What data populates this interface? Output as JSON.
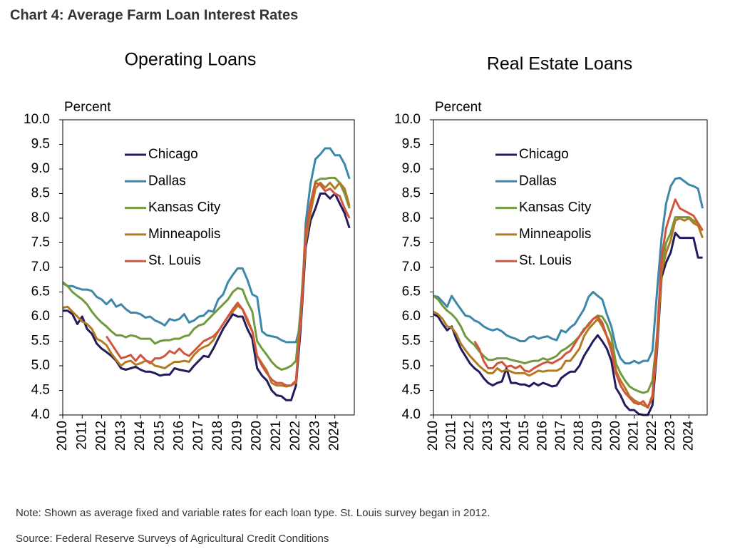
{
  "title": "Chart 4: Average Farm Loan Interest Rates",
  "note": "Note: Shown as average fixed and variable rates for each loan type. St. Louis survey began in 2012.",
  "source": "Source: Federal Reserve Surveys of Agricultural Credit Conditions",
  "chart_data": [
    {
      "type": "line",
      "title": "Operating Loans",
      "y_label": "Percent",
      "legend": "upper left",
      "grid": false,
      "x": [
        2010,
        2010.25,
        2010.5,
        2010.75,
        2011,
        2011.25,
        2011.5,
        2011.75,
        2012,
        2012.25,
        2012.5,
        2012.75,
        2013,
        2013.25,
        2013.5,
        2013.75,
        2014,
        2014.25,
        2014.5,
        2014.75,
        2015,
        2015.25,
        2015.5,
        2015.75,
        2016,
        2016.25,
        2016.5,
        2016.75,
        2017,
        2017.25,
        2017.5,
        2017.75,
        2018,
        2018.25,
        2018.5,
        2018.75,
        2019,
        2019.25,
        2019.5,
        2019.75,
        2020,
        2020.25,
        2020.5,
        2020.75,
        2021,
        2021.25,
        2021.5,
        2021.75,
        2022,
        2022.25,
        2022.5,
        2022.75,
        2023,
        2023.25,
        2023.5,
        2023.75,
        2024,
        2024.25,
        2024.5,
        2024.75
      ],
      "xlim": [
        2010,
        2025
      ],
      "xticks": [
        2010,
        2011,
        2012,
        2013,
        2014,
        2015,
        2016,
        2017,
        2018,
        2019,
        2020,
        2021,
        2022,
        2023,
        2024
      ],
      "ylim": [
        4,
        10
      ],
      "yticks": [
        {
          "value": 4,
          "label": "4.0"
        },
        {
          "value": 4.5,
          "label": "4.5"
        },
        {
          "value": 5,
          "label": "5.0"
        },
        {
          "value": 5.5,
          "label": "5.5"
        },
        {
          "value": 6,
          "label": "6.0"
        },
        {
          "value": 6.5,
          "label": "6.5"
        },
        {
          "value": 7,
          "label": "7.0"
        },
        {
          "value": 7.5,
          "label": "7.5"
        },
        {
          "value": 8,
          "label": "8.0"
        },
        {
          "value": 8.5,
          "label": "8.5"
        },
        {
          "value": 9,
          "label": "9.0"
        },
        {
          "value": 9.5,
          "label": "9.5"
        },
        {
          "value": 10,
          "label": "10.0"
        }
      ],
      "series": [
        {
          "name": "Chicago",
          "color": "#221c5c",
          "values": [
            6.12,
            6.12,
            6.05,
            5.85,
            6.0,
            5.75,
            5.65,
            5.45,
            5.35,
            5.28,
            5.2,
            5.1,
            4.95,
            4.92,
            4.95,
            4.98,
            4.92,
            4.88,
            4.88,
            4.85,
            4.8,
            4.82,
            4.82,
            4.95,
            4.92,
            4.9,
            4.88,
            5.0,
            5.1,
            5.2,
            5.18,
            5.35,
            5.55,
            5.75,
            5.9,
            6.05,
            6.0,
            6.0,
            5.75,
            5.55,
            4.95,
            4.8,
            4.7,
            4.5,
            4.4,
            4.38,
            4.3,
            4.3,
            4.6,
            5.8,
            7.4,
            7.95,
            8.2,
            8.5,
            8.5,
            8.4,
            8.5,
            8.3,
            8.1,
            7.8
          ]
        },
        {
          "name": "Dallas",
          "color": "#3d87a9",
          "values": [
            6.68,
            6.62,
            6.62,
            6.58,
            6.55,
            6.55,
            6.52,
            6.4,
            6.35,
            6.25,
            6.35,
            6.2,
            6.25,
            6.15,
            6.08,
            6.08,
            6.05,
            5.98,
            6.0,
            5.92,
            5.88,
            5.82,
            5.95,
            5.92,
            5.95,
            6.05,
            5.88,
            5.92,
            6.0,
            6.02,
            6.12,
            6.1,
            6.35,
            6.45,
            6.7,
            6.85,
            6.98,
            6.98,
            6.75,
            6.45,
            6.4,
            5.7,
            5.62,
            5.6,
            5.58,
            5.52,
            5.48,
            5.48,
            5.48,
            5.85,
            7.9,
            8.7,
            9.2,
            9.3,
            9.42,
            9.42,
            9.28,
            9.28,
            9.1,
            8.8
          ]
        },
        {
          "name": "Kansas City",
          "color": "#6f9a3e",
          "values": [
            6.7,
            6.62,
            6.5,
            6.42,
            6.35,
            6.25,
            6.1,
            5.98,
            5.88,
            5.8,
            5.7,
            5.62,
            5.62,
            5.58,
            5.62,
            5.6,
            5.55,
            5.55,
            5.55,
            5.45,
            5.5,
            5.52,
            5.52,
            5.55,
            5.55,
            5.6,
            5.62,
            5.75,
            5.82,
            5.85,
            5.95,
            6.05,
            6.15,
            6.25,
            6.35,
            6.5,
            6.58,
            6.55,
            6.3,
            6.1,
            5.5,
            5.35,
            5.22,
            5.08,
            4.98,
            4.92,
            4.95,
            5.0,
            5.1,
            6.2,
            7.6,
            8.3,
            8.75,
            8.8,
            8.8,
            8.82,
            8.82,
            8.72,
            8.5,
            8.2
          ]
        },
        {
          "name": "Minneapolis",
          "color": "#b27b22",
          "values": [
            6.18,
            6.2,
            6.1,
            6.0,
            5.9,
            5.85,
            5.75,
            5.55,
            5.5,
            5.42,
            5.25,
            5.12,
            5.0,
            5.08,
            5.1,
            5.02,
            5.05,
            5.1,
            5.08,
            5.0,
            4.98,
            4.95,
            5.02,
            5.08,
            5.08,
            5.1,
            5.08,
            5.22,
            5.32,
            5.38,
            5.42,
            5.52,
            5.7,
            5.85,
            6.0,
            6.1,
            6.22,
            6.15,
            5.95,
            5.7,
            5.2,
            5.05,
            4.9,
            4.65,
            4.6,
            4.6,
            4.58,
            4.6,
            4.65,
            6.0,
            7.5,
            8.1,
            8.6,
            8.72,
            8.62,
            8.72,
            8.6,
            8.72,
            8.6,
            8.25
          ]
        },
        {
          "name": "St. Louis",
          "color": "#d1563b",
          "values": [
            null,
            null,
            null,
            null,
            null,
            null,
            null,
            null,
            null,
            5.6,
            5.45,
            5.3,
            5.15,
            5.18,
            5.22,
            5.1,
            5.22,
            5.12,
            5.05,
            5.15,
            5.15,
            5.2,
            5.3,
            5.25,
            5.35,
            5.25,
            5.2,
            5.3,
            5.4,
            5.5,
            5.55,
            5.6,
            5.7,
            5.85,
            6.0,
            6.15,
            6.28,
            6.15,
            5.9,
            5.7,
            5.2,
            5.0,
            4.85,
            4.72,
            4.65,
            4.65,
            4.6,
            4.6,
            4.7,
            6.0,
            7.7,
            8.3,
            8.72,
            8.68,
            8.55,
            8.6,
            8.5,
            8.45,
            8.2,
            8.0
          ]
        }
      ]
    },
    {
      "type": "line",
      "title": "Real Estate Loans",
      "y_label": "Percent",
      "legend": "upper left",
      "grid": false,
      "x": [
        2010,
        2010.25,
        2010.5,
        2010.75,
        2011,
        2011.25,
        2011.5,
        2011.75,
        2012,
        2012.25,
        2012.5,
        2012.75,
        2013,
        2013.25,
        2013.5,
        2013.75,
        2014,
        2014.25,
        2014.5,
        2014.75,
        2015,
        2015.25,
        2015.5,
        2015.75,
        2016,
        2016.25,
        2016.5,
        2016.75,
        2017,
        2017.25,
        2017.5,
        2017.75,
        2018,
        2018.25,
        2018.5,
        2018.75,
        2019,
        2019.25,
        2019.5,
        2019.75,
        2020,
        2020.25,
        2020.5,
        2020.75,
        2021,
        2021.25,
        2021.5,
        2021.75,
        2022,
        2022.25,
        2022.5,
        2022.75,
        2023,
        2023.25,
        2023.5,
        2023.75,
        2024,
        2024.25,
        2024.5,
        2024.75
      ],
      "xlim": [
        2010,
        2025
      ],
      "xticks": [
        2010,
        2011,
        2012,
        2013,
        2014,
        2015,
        2016,
        2017,
        2018,
        2019,
        2020,
        2021,
        2022,
        2023,
        2024
      ],
      "ylim": [
        4,
        10
      ],
      "yticks": [
        {
          "value": 4,
          "label": "4.0"
        },
        {
          "value": 4.5,
          "label": "4.5"
        },
        {
          "value": 5,
          "label": "5.0"
        },
        {
          "value": 5.5,
          "label": "5.5"
        },
        {
          "value": 6,
          "label": "6.0"
        },
        {
          "value": 6.5,
          "label": "6.5"
        },
        {
          "value": 7,
          "label": "7.0"
        },
        {
          "value": 7.5,
          "label": "7.5"
        },
        {
          "value": 8,
          "label": "8.0"
        },
        {
          "value": 8.5,
          "label": "8.5"
        },
        {
          "value": 9,
          "label": "9.0"
        },
        {
          "value": 9.5,
          "label": "9.5"
        },
        {
          "value": 10,
          "label": "10.0"
        }
      ],
      "series": [
        {
          "name": "Chicago",
          "color": "#221c5c",
          "values": [
            6.05,
            6.0,
            5.85,
            5.72,
            5.8,
            5.55,
            5.35,
            5.2,
            5.05,
            4.95,
            4.88,
            4.75,
            4.65,
            4.6,
            4.65,
            4.68,
            4.95,
            4.65,
            4.65,
            4.62,
            4.62,
            4.58,
            4.65,
            4.6,
            4.65,
            4.62,
            4.58,
            4.6,
            4.75,
            4.82,
            4.88,
            4.88,
            5.0,
            5.2,
            5.35,
            5.5,
            5.62,
            5.5,
            5.35,
            5.1,
            4.55,
            4.4,
            4.2,
            4.1,
            4.1,
            4.02,
            4.0,
            4.0,
            4.2,
            5.3,
            6.8,
            7.1,
            7.3,
            7.7,
            7.6,
            7.6,
            7.6,
            7.6,
            7.2,
            7.2
          ]
        },
        {
          "name": "Dallas",
          "color": "#3d87a9",
          "values": [
            6.42,
            6.4,
            6.3,
            6.2,
            6.42,
            6.28,
            6.15,
            6.02,
            6.0,
            5.92,
            5.88,
            5.8,
            5.75,
            5.72,
            5.75,
            5.7,
            5.62,
            5.58,
            5.55,
            5.5,
            5.5,
            5.58,
            5.6,
            5.55,
            5.58,
            5.6,
            5.55,
            5.52,
            5.72,
            5.68,
            5.78,
            5.85,
            6.0,
            6.15,
            6.4,
            6.5,
            6.42,
            6.35,
            6.05,
            5.8,
            5.38,
            5.15,
            5.05,
            5.05,
            5.1,
            5.05,
            5.1,
            5.1,
            5.3,
            6.5,
            7.6,
            8.3,
            8.65,
            8.8,
            8.82,
            8.75,
            8.68,
            8.65,
            8.6,
            8.2
          ]
        },
        {
          "name": "Kansas City",
          "color": "#6f9a3e",
          "values": [
            6.42,
            6.35,
            6.22,
            6.12,
            6.05,
            5.95,
            5.8,
            5.6,
            5.5,
            5.42,
            5.3,
            5.2,
            5.12,
            5.12,
            5.15,
            5.15,
            5.15,
            5.12,
            5.1,
            5.08,
            5.05,
            5.08,
            5.1,
            5.1,
            5.15,
            5.12,
            5.15,
            5.2,
            5.3,
            5.35,
            5.42,
            5.5,
            5.6,
            5.75,
            5.82,
            5.95,
            6.02,
            6.0,
            5.85,
            5.6,
            5.05,
            4.85,
            4.7,
            4.58,
            4.52,
            4.48,
            4.45,
            4.48,
            4.7,
            5.6,
            7.0,
            7.5,
            7.7,
            8.02,
            8.02,
            8.02,
            8.02,
            7.95,
            7.9,
            7.75
          ]
        },
        {
          "name": "Minneapolis",
          "color": "#b27b22",
          "values": [
            6.1,
            6.05,
            5.95,
            5.8,
            5.78,
            5.65,
            5.45,
            5.32,
            5.2,
            5.1,
            5.0,
            4.92,
            4.85,
            4.85,
            4.95,
            4.88,
            4.92,
            4.88,
            4.85,
            4.85,
            4.85,
            4.8,
            4.85,
            4.9,
            4.88,
            4.9,
            4.9,
            4.9,
            4.95,
            5.1,
            5.1,
            5.22,
            5.35,
            5.6,
            5.75,
            5.85,
            5.95,
            5.8,
            5.6,
            5.42,
            4.9,
            4.7,
            4.55,
            4.38,
            4.3,
            4.25,
            4.2,
            4.15,
            4.35,
            5.4,
            6.9,
            7.3,
            7.55,
            7.95,
            8.0,
            7.95,
            8.0,
            7.9,
            7.85,
            7.6
          ]
        },
        {
          "name": "St. Louis",
          "color": "#d1563b",
          "values": [
            null,
            null,
            null,
            null,
            null,
            null,
            null,
            null,
            null,
            5.5,
            5.35,
            5.1,
            4.95,
            4.95,
            5.05,
            5.08,
            4.98,
            5.0,
            4.95,
            5.0,
            4.9,
            4.88,
            4.95,
            5.0,
            5.05,
            5.08,
            5.05,
            5.1,
            5.15,
            5.25,
            5.3,
            5.45,
            5.6,
            5.72,
            5.85,
            5.95,
            6.0,
            5.88,
            5.6,
            5.3,
            4.85,
            4.6,
            4.45,
            4.35,
            4.25,
            4.22,
            4.28,
            4.15,
            4.4,
            5.6,
            7.2,
            7.8,
            8.1,
            8.38,
            8.2,
            8.15,
            8.1,
            8.05,
            7.9,
            7.75
          ]
        }
      ]
    }
  ]
}
